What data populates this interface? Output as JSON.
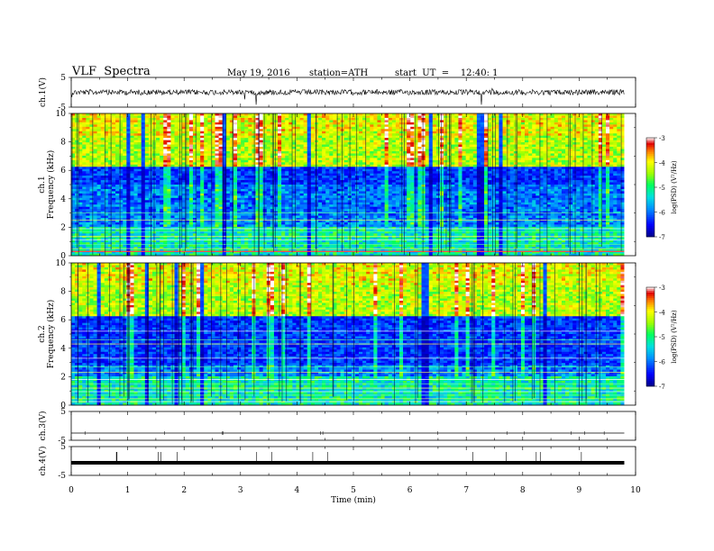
{
  "header": {
    "title": "VLF  Spectra",
    "date": "May 19, 2016",
    "station": "station=ATH",
    "start": "start  UT  =    12:40: 1"
  },
  "chart_data": {
    "type": "heatmap",
    "xlabel": "Time  (min)",
    "xlim": [
      0,
      10
    ],
    "xticks": [
      "0",
      "1",
      "2",
      "3",
      "4",
      "5",
      "6",
      "7",
      "8",
      "9",
      "10"
    ],
    "panels": [
      {
        "kind": "waveform",
        "ylabel": "ch.1(V)",
        "ylim": [
          -5,
          5
        ],
        "yticks": [
          "5",
          "-5"
        ]
      },
      {
        "kind": "spectrogram",
        "ylabel": "Frequency  (kHz)",
        "channel": "ch.1",
        "ylim": [
          0,
          10
        ],
        "yticks": [
          "0",
          "2",
          "4",
          "6",
          "8",
          "10"
        ],
        "colorbar": {
          "label": "log(PSD) (V²/Hz)",
          "range": [
            -7,
            -3
          ],
          "ticks": [
            "-3",
            "-4",
            "-5",
            "-6",
            "-7"
          ]
        }
      },
      {
        "kind": "spectrogram",
        "ylabel": "Frequency  (kHz)",
        "channel": "ch.2",
        "ylim": [
          0,
          10
        ],
        "yticks": [
          "0",
          "2",
          "4",
          "6",
          "8",
          "10"
        ],
        "colorbar": {
          "label": "log(PSD) (V²/Hz)",
          "range": [
            -7,
            -3
          ],
          "ticks": [
            "-3",
            "-4",
            "-5",
            "-6",
            "-7"
          ]
        }
      },
      {
        "kind": "waveform",
        "ylabel": "ch.3(V)",
        "ylim": [
          -5,
          5
        ],
        "yticks": [
          "5",
          "-5"
        ]
      },
      {
        "kind": "waveform",
        "ylabel": "ch.4(V)",
        "ylim": [
          -5,
          5
        ],
        "yticks": [
          "5",
          "-5"
        ]
      }
    ],
    "data_end_min": 9.8
  }
}
